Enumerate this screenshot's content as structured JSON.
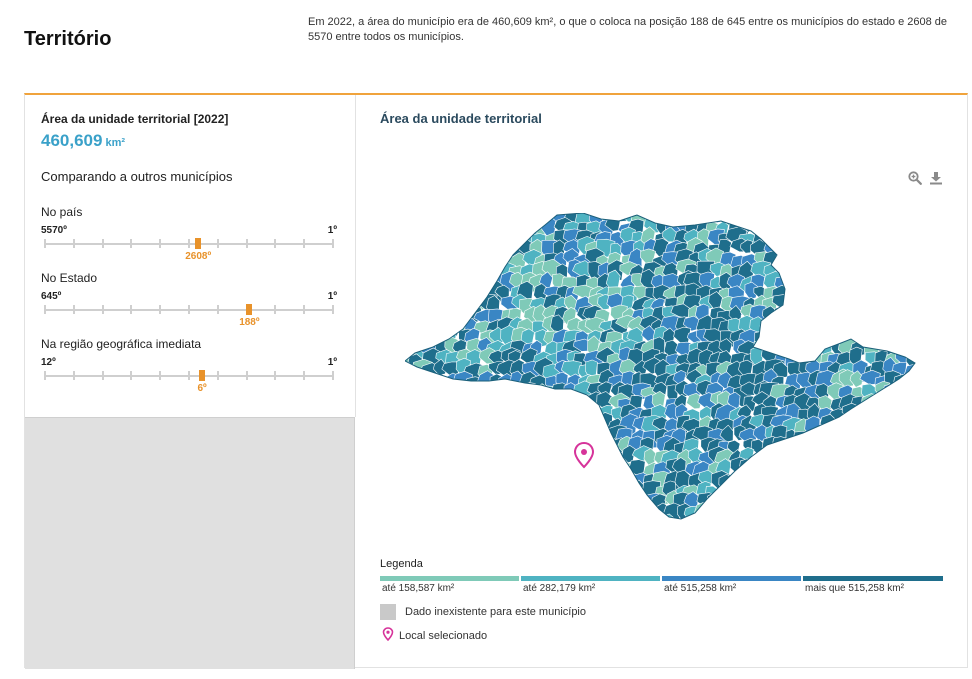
{
  "header": {
    "title": "Território",
    "intro": "Em 2022, a área do município era de 460,609 km², o que o coloca na posição 188 de 645 entre os municípios do estado e 2608 de 5570 entre todos os municípios."
  },
  "indicator": {
    "label": "Área da unidade territorial [2022]",
    "value": "460,609",
    "unit": "km²"
  },
  "comparison": {
    "title": "Comparando a outros municípios",
    "rankings": [
      {
        "name": "No país",
        "min_label": "5570º",
        "max_label": "1º",
        "current_label": "2608º",
        "position": 2608,
        "total": 5570
      },
      {
        "name": "No Estado",
        "min_label": "645º",
        "max_label": "1º",
        "current_label": "188º",
        "position": 188,
        "total": 645
      },
      {
        "name": "Na região geográfica imediata",
        "min_label": "12º",
        "max_label": "1º",
        "current_label": "6º",
        "position": 6,
        "total": 12
      }
    ]
  },
  "map": {
    "title": "Área da unidade territorial",
    "tools": {
      "zoom_icon": "zoom-in-icon",
      "download_icon": "download-icon"
    },
    "legend": {
      "title": "Legenda",
      "classes": [
        {
          "label": "até 158,587 km²",
          "color": "#7fcab8"
        },
        {
          "label": "até 282,179 km²",
          "color": "#4fb3c2"
        },
        {
          "label": "até 515,258 km²",
          "color": "#3a86c4"
        },
        {
          "label": "mais que 515,258 km²",
          "color": "#1f6e8c"
        }
      ],
      "no_data": "Dado inexistente para este município",
      "no_data_color": "#c9c9c9",
      "selected": "Local selecionado",
      "selected_color": "#d6339a"
    }
  }
}
